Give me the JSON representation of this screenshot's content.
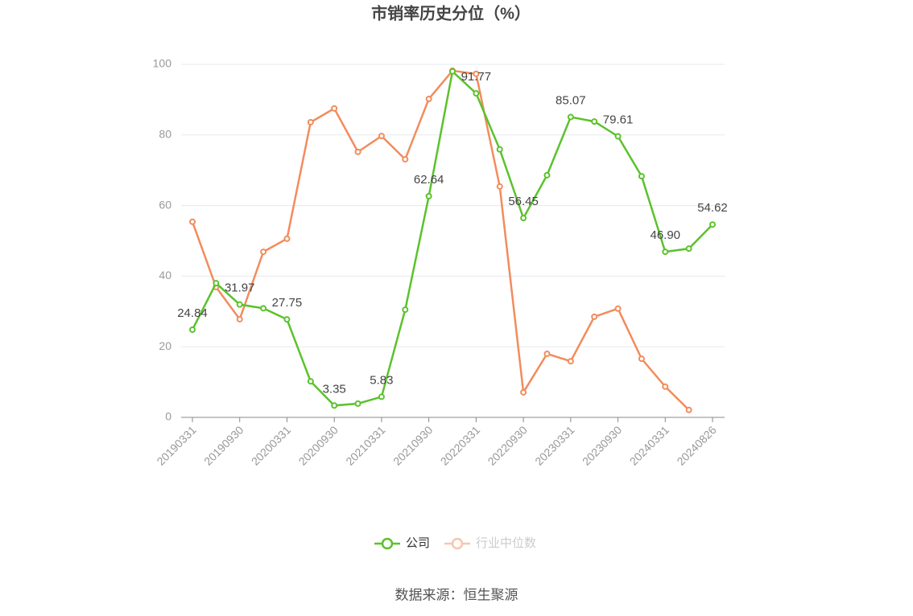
{
  "chart_data": {
    "type": "line",
    "title": "市销率历史分位（%）",
    "categories": [
      "20190331",
      null,
      "20190930",
      null,
      "20200331",
      null,
      "20200930",
      null,
      "20210331",
      null,
      "20210930",
      null,
      "20220331",
      null,
      "20220930",
      null,
      "20230331",
      null,
      "20230930",
      null,
      "20240331",
      null,
      "20240826"
    ],
    "series": [
      {
        "name": "公司",
        "color": "#5bc22c",
        "values": [
          24.84,
          38.0,
          31.97,
          30.9,
          27.75,
          10.2,
          3.35,
          3.9,
          5.83,
          30.5,
          62.64,
          98.0,
          91.77,
          75.9,
          56.45,
          68.6,
          85.07,
          83.8,
          79.61,
          68.3,
          46.9,
          47.8,
          54.62
        ],
        "value_labels": [
          "24.84",
          null,
          "31.97",
          null,
          "27.75",
          null,
          "3.35",
          null,
          "5.83",
          null,
          "62.64",
          null,
          "91.77",
          null,
          "56.45",
          null,
          "85.07",
          null,
          "79.61",
          null,
          "46.90",
          null,
          "54.62"
        ]
      },
      {
        "name": "行业中位数",
        "color": "#f28c5c",
        "values": [
          55.4,
          36.9,
          27.8,
          46.9,
          50.6,
          83.6,
          87.5,
          75.2,
          79.7,
          73.1,
          90.2,
          98.2,
          97.3,
          65.4,
          7.1,
          18.0,
          15.9,
          28.5,
          30.8,
          16.6,
          8.7,
          2.1,
          null
        ]
      }
    ],
    "ylim": [
      0,
      100
    ],
    "yticks": [
      0,
      20,
      40,
      60,
      80,
      100
    ],
    "grid": true,
    "source": "数据来源：恒生聚源"
  }
}
